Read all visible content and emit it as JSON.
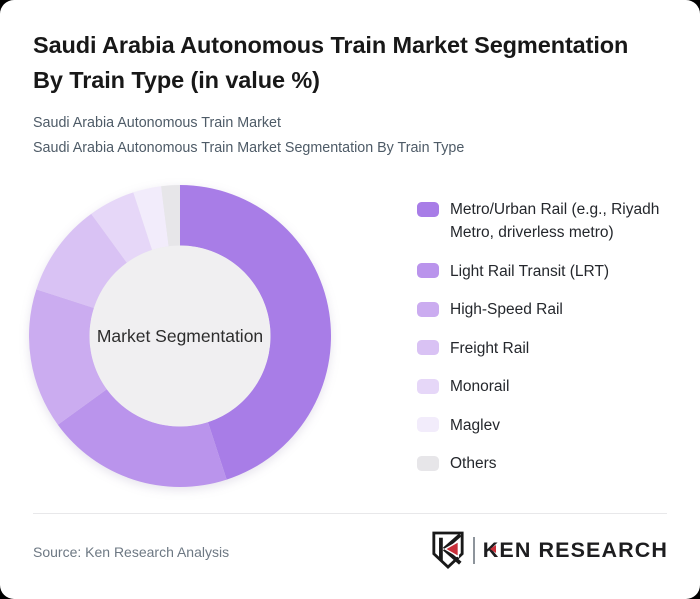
{
  "page": {
    "outer_background": "#000000",
    "card_background": "#ffffff"
  },
  "header": {
    "title": "Saudi Arabia Autonomous Train Market Segmentation By Train Type (in value %)",
    "title_line1": "Saudi Arabia Autonomous Train Market Segmentation",
    "title_line2": "By Train Type (in value %)",
    "subtitle_line1": "Saudi Arabia Autonomous Train Market",
    "subtitle_line2": "Saudi Arabia Autonomous Train Market Segmentation By Train Type"
  },
  "chart_data": {
    "type": "pie",
    "subtype": "donut",
    "title": "Saudi Arabia Autonomous Train Market Segmentation By Train Type (in value %)",
    "center_label": "Market Segmentation",
    "categories": [
      "Metro/Urban Rail (e.g., Riyadh Metro, driverless metro)",
      "Light Rail Transit (LRT)",
      "High-Speed Rail",
      "Freight Rail",
      "Monorail",
      "Maglev",
      "Others"
    ],
    "values": [
      45,
      20,
      15,
      10,
      5,
      3,
      2
    ],
    "unit": "% of market value (estimated from segment angles; no data labels shown)",
    "colors": [
      "#a87de7",
      "#ba94ec",
      "#cbacf0",
      "#d9c2f4",
      "#e6d7f8",
      "#f2ecfb",
      "#e7e6e9"
    ],
    "hole_color": "#f0eff1",
    "start_angle_deg": 0,
    "direction": "clockwise",
    "inner_radius_ratio": 0.6,
    "legend_position": "right",
    "data_labels": false
  },
  "footer": {
    "source": "Source: Ken Research Analysis",
    "logo_text": "KEN RESEARCH",
    "logo_accent_color": "#c9303a",
    "logo_badge": "ken-research-shield-k"
  }
}
